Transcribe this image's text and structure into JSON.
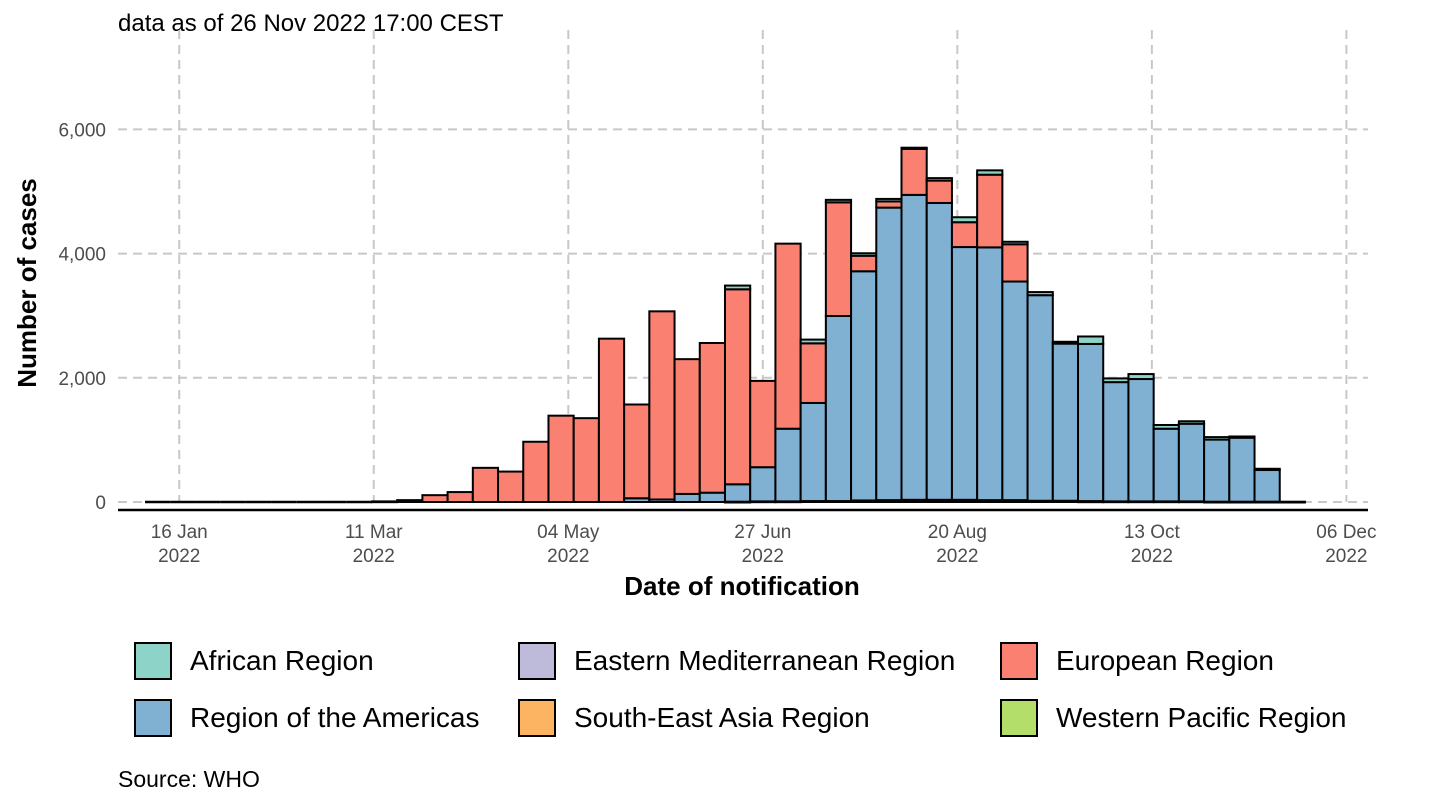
{
  "subtitle": "data as of 26 Nov 2022 17:00 CEST",
  "source": "Source: WHO",
  "colors": {
    "African Region": "#8ed3c7",
    "Eastern Mediterranean Region": "#bebad9",
    "European Region": "#fa8072",
    "Region of the Americas": "#80b1d3",
    "South-East Asia Region": "#fdb462",
    "Western Pacific Region": "#b3de69"
  },
  "chart_data": {
    "type": "bar",
    "stacked": true,
    "xlabel": "Date of notification",
    "ylabel": "Number of cases",
    "ylim": [
      0,
      7600
    ],
    "y_ticks": [
      0,
      2000,
      4000,
      6000
    ],
    "y_tick_labels": [
      "0",
      "2,000",
      "4,000",
      "6,000"
    ],
    "x_ticks": [
      {
        "date": "2022-01-16",
        "label": [
          "16 Jan",
          "2022"
        ]
      },
      {
        "date": "2022-03-11",
        "label": [
          "11 Mar",
          "2022"
        ]
      },
      {
        "date": "2022-05-04",
        "label": [
          "04 May",
          "2022"
        ]
      },
      {
        "date": "2022-06-27",
        "label": [
          "27 Jun",
          "2022"
        ]
      },
      {
        "date": "2022-08-20",
        "label": [
          "20 Aug",
          "2022"
        ]
      },
      {
        "date": "2022-10-13",
        "label": [
          "13 Oct",
          "2022"
        ]
      },
      {
        "date": "2022-12-06",
        "label": [
          "06 Dec",
          "2022"
        ]
      }
    ],
    "xlim": [
      "2021-12-30",
      "2022-12-12"
    ],
    "grid": true,
    "legend_position": "bottom",
    "bar_width_days": 7,
    "categories": [
      "2022-01-10",
      "2022-01-17",
      "2022-01-24",
      "2022-01-31",
      "2022-02-07",
      "2022-02-14",
      "2022-02-21",
      "2022-02-28",
      "2022-03-07",
      "2022-03-14",
      "2022-03-21",
      "2022-03-28",
      "2022-04-04",
      "2022-04-11",
      "2022-04-18",
      "2022-04-25",
      "2022-05-02",
      "2022-05-09",
      "2022-05-16",
      "2022-05-23",
      "2022-05-30",
      "2022-06-06",
      "2022-06-13",
      "2022-06-20",
      "2022-06-27",
      "2022-07-04",
      "2022-07-11",
      "2022-07-18",
      "2022-07-25",
      "2022-08-01",
      "2022-08-08",
      "2022-08-15",
      "2022-08-22",
      "2022-08-29",
      "2022-09-05",
      "2022-09-12",
      "2022-09-19",
      "2022-09-26",
      "2022-10-03",
      "2022-10-10",
      "2022-10-17",
      "2022-10-24",
      "2022-10-31",
      "2022-11-07",
      "2022-11-14",
      "2022-11-21"
    ],
    "series": [
      {
        "name": "Western Pacific Region",
        "values": [
          0,
          0,
          0,
          0,
          0,
          0,
          0,
          0,
          0,
          0,
          0,
          0,
          0,
          0,
          0,
          0,
          0,
          0,
          0,
          0,
          0,
          0,
          0,
          5,
          10,
          10,
          15,
          15,
          20,
          20,
          25,
          25,
          25,
          20,
          20,
          15,
          15,
          10,
          10,
          10,
          10,
          10,
          5,
          5,
          5,
          5
        ]
      },
      {
        "name": "South-East Asia Region",
        "values": [
          0,
          0,
          0,
          0,
          0,
          0,
          0,
          0,
          0,
          0,
          0,
          0,
          0,
          0,
          0,
          0,
          0,
          0,
          0,
          0,
          0,
          0,
          0,
          0,
          0,
          0,
          0,
          0,
          5,
          5,
          5,
          5,
          5,
          5,
          5,
          5,
          5,
          5,
          0,
          0,
          0,
          0,
          0,
          0,
          0,
          0
        ]
      },
      {
        "name": "Eastern Mediterranean Region",
        "values": [
          0,
          0,
          0,
          0,
          0,
          0,
          0,
          0,
          0,
          0,
          0,
          0,
          0,
          0,
          0,
          0,
          0,
          0,
          0,
          0,
          0,
          0,
          0,
          0,
          0,
          0,
          0,
          0,
          0,
          5,
          5,
          5,
          5,
          5,
          5,
          0,
          0,
          0,
          0,
          0,
          0,
          0,
          0,
          0,
          0,
          0
        ]
      },
      {
        "name": "Region of the Americas",
        "values": [
          0,
          0,
          0,
          0,
          0,
          0,
          0,
          0,
          0,
          0,
          0,
          0,
          0,
          0,
          0,
          0,
          0,
          0,
          0,
          60,
          40,
          130,
          150,
          280,
          550,
          1170,
          1580,
          2980,
          3690,
          4710,
          4910,
          4780,
          4070,
          4070,
          3520,
          3310,
          2530,
          2530,
          1920,
          1970,
          1170,
          1250,
          1000,
          1030,
          510,
          0
        ]
      },
      {
        "name": "European Region",
        "values": [
          0,
          0,
          0,
          0,
          0,
          0,
          0,
          0,
          0,
          10,
          30,
          110,
          160,
          550,
          490,
          970,
          1390,
          1350,
          2630,
          1510,
          3030,
          2170,
          2410,
          3140,
          1390,
          2980,
          960,
          1830,
          250,
          100,
          740,
          360,
          400,
          1170,
          600,
          0,
          0,
          0,
          0,
          0,
          0,
          0,
          0,
          0,
          0,
          0
        ]
      },
      {
        "name": "African Region",
        "values": [
          0,
          0,
          0,
          0,
          0,
          0,
          0,
          0,
          0,
          0,
          0,
          0,
          0,
          0,
          0,
          0,
          0,
          0,
          0,
          0,
          0,
          0,
          0,
          60,
          0,
          0,
          60,
          40,
          40,
          40,
          20,
          40,
          80,
          70,
          40,
          50,
          30,
          120,
          60,
          80,
          60,
          40,
          40,
          20,
          20,
          0
        ]
      }
    ],
    "series_order": [
      "African Region",
      "Eastern Mediterranean Region",
      "European Region",
      "Region of the Americas",
      "South-East Asia Region",
      "Western Pacific Region"
    ]
  }
}
